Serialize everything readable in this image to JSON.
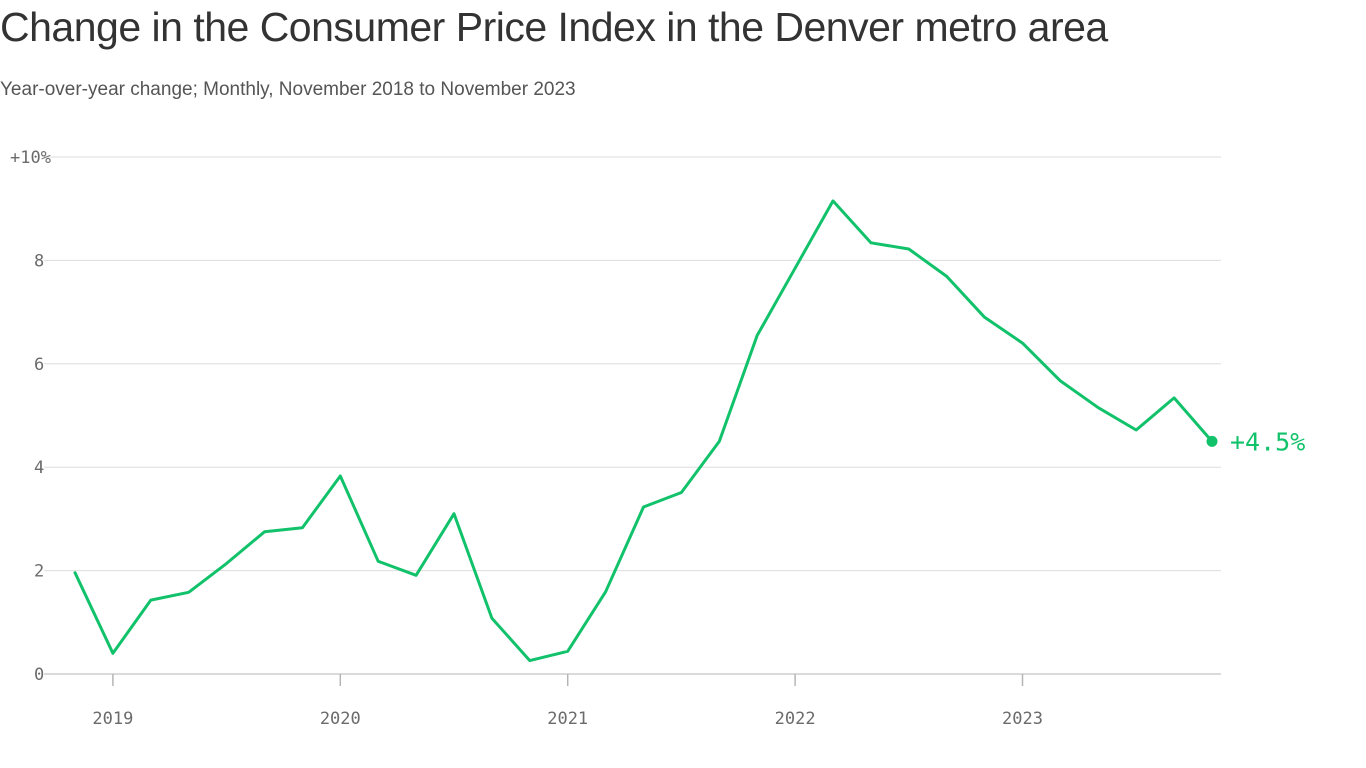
{
  "title": "Change in the Consumer Price Index in the Denver metro area",
  "subtitle": "Year-over-year change; Monthly, November 2018 to November 2023",
  "colors": {
    "series": "#12c26b",
    "grid": "#dddddd",
    "axis": "#b5b5b5",
    "tick_text": "#6b6b6b"
  },
  "chart_data": {
    "type": "line",
    "x": [
      "2018-11",
      "2019-01",
      "2019-03",
      "2019-05",
      "2019-07",
      "2019-09",
      "2019-11",
      "2020-01",
      "2020-03",
      "2020-05",
      "2020-07",
      "2020-09",
      "2020-11",
      "2021-01",
      "2021-03",
      "2021-05",
      "2021-07",
      "2021-09",
      "2021-11",
      "2022-01",
      "2022-03",
      "2022-05",
      "2022-07",
      "2022-09",
      "2022-11",
      "2023-01",
      "2023-03",
      "2023-05",
      "2023-07",
      "2023-09",
      "2023-11"
    ],
    "series": [
      {
        "values": [
          1.96,
          0.4,
          1.43,
          1.58,
          2.14,
          2.75,
          2.83,
          3.83,
          2.18,
          1.91,
          3.1,
          1.08,
          0.26,
          0.44,
          1.59,
          3.23,
          3.51,
          4.5,
          6.55,
          7.85,
          9.15,
          8.34,
          8.22,
          7.69,
          6.9,
          6.4,
          5.67,
          5.15,
          4.72,
          5.34,
          4.5
        ]
      }
    ],
    "end_label": "+4.5%",
    "ylim": [
      0,
      10
    ],
    "y_ticks": [
      {
        "value": 0,
        "label": "0"
      },
      {
        "value": 2,
        "label": "2"
      },
      {
        "value": 4,
        "label": "4"
      },
      {
        "value": 6,
        "label": "6"
      },
      {
        "value": 8,
        "label": "8"
      },
      {
        "value": 10,
        "label": "+10%"
      }
    ],
    "x_ticks": [
      {
        "value": "2019-01",
        "label": "2019"
      },
      {
        "value": "2020-01",
        "label": "2020"
      },
      {
        "value": "2021-01",
        "label": "2021"
      },
      {
        "value": "2022-01",
        "label": "2022"
      },
      {
        "value": "2023-01",
        "label": "2023"
      }
    ],
    "grid": true,
    "legend": "none"
  }
}
